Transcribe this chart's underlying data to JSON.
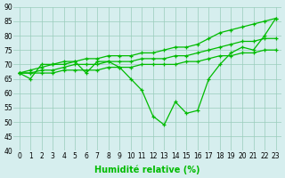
{
  "x": [
    0,
    1,
    2,
    3,
    4,
    5,
    6,
    7,
    8,
    9,
    10,
    11,
    12,
    13,
    14,
    15,
    16,
    17,
    18,
    19,
    20,
    21,
    22,
    23
  ],
  "line1": [
    67,
    65,
    70,
    70,
    71,
    71,
    67,
    71,
    71,
    69,
    65,
    61,
    52,
    49,
    57,
    53,
    54,
    65,
    70,
    74,
    76,
    75,
    80,
    86
  ],
  "line2": [
    67,
    67,
    67,
    67,
    68,
    68,
    68,
    68,
    69,
    69,
    69,
    70,
    70,
    70,
    70,
    71,
    71,
    72,
    73,
    73,
    74,
    74,
    75,
    75
  ],
  "line3": [
    67,
    67,
    68,
    68,
    69,
    70,
    70,
    70,
    71,
    71,
    71,
    72,
    72,
    72,
    73,
    73,
    74,
    75,
    76,
    77,
    78,
    78,
    79,
    79
  ],
  "line4": [
    67,
    68,
    69,
    70,
    70,
    71,
    72,
    72,
    73,
    73,
    73,
    74,
    74,
    75,
    76,
    76,
    77,
    79,
    81,
    82,
    83,
    84,
    85,
    86
  ],
  "ylim": [
    40,
    90
  ],
  "xlim": [
    -0.5,
    23.5
  ],
  "yticks": [
    40,
    45,
    50,
    55,
    60,
    65,
    70,
    75,
    80,
    85,
    90
  ],
  "xticks": [
    0,
    1,
    2,
    3,
    4,
    5,
    6,
    7,
    8,
    9,
    10,
    11,
    12,
    13,
    14,
    15,
    16,
    17,
    18,
    19,
    20,
    21,
    22,
    23
  ],
  "xlabel": "Humidité relative (%)",
  "line_color": "#00bb00",
  "bg_color": "#d6eeee",
  "grid_color": "#99ccbb",
  "marker": "+",
  "linewidth": 0.9,
  "markersize": 3.5,
  "label_fontsize": 5.5,
  "xlabel_fontsize": 7
}
